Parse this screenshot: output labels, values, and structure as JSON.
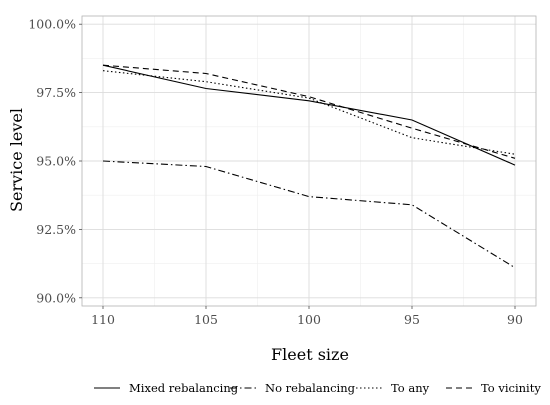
{
  "chart_data": {
    "type": "line",
    "title": "",
    "xlabel": "Fleet size",
    "ylabel": "Service level",
    "x": [
      110,
      105,
      100,
      95,
      90
    ],
    "x_tick_labels": [
      "110",
      "105",
      "100",
      "95",
      "90"
    ],
    "x_reversed": true,
    "y_tick_values": [
      90.0,
      92.5,
      95.0,
      97.5,
      100.0
    ],
    "y_tick_labels": [
      "90.0%",
      "92.5%",
      "95.0%",
      "97.5%",
      "100.0%"
    ],
    "ylim": [
      89.7,
      100.3
    ],
    "grid": true,
    "legend_position": "bottom",
    "series": [
      {
        "name": "Mixed rebalancing",
        "dash": "solid",
        "values": [
          98.5,
          97.65,
          97.2,
          96.5,
          94.85
        ]
      },
      {
        "name": "No rebalancing",
        "dash": "dashdot",
        "values": [
          95.0,
          94.8,
          93.7,
          93.4,
          91.1
        ]
      },
      {
        "name": "To any",
        "dash": "dotted",
        "values": [
          98.3,
          97.9,
          97.3,
          95.85,
          95.25
        ]
      },
      {
        "name": "To vicinity",
        "dash": "dashed",
        "values": [
          98.5,
          98.2,
          97.35,
          96.2,
          95.1
        ]
      }
    ]
  }
}
